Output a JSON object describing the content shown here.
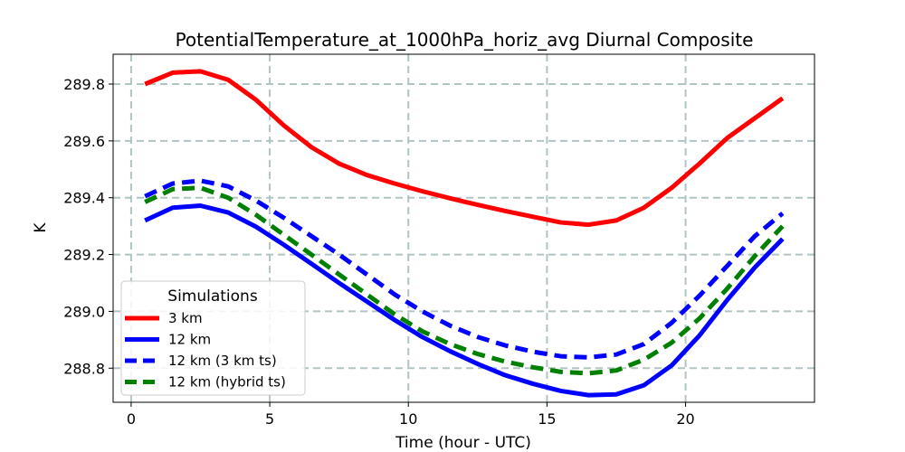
{
  "chart_data": {
    "type": "line",
    "title": "PotentialTemperature_at_1000hPa_horiz_avg Diurnal Composite",
    "xlabel": "Time (hour - UTC)",
    "ylabel": "K",
    "xlim": [
      -0.65,
      24.65
    ],
    "ylim": [
      288.68,
      289.905
    ],
    "xticks": [
      0,
      5,
      10,
      15,
      20
    ],
    "xtick_labels": [
      "0",
      "5",
      "10",
      "15",
      "20"
    ],
    "yticks": [
      288.8,
      289.0,
      289.2,
      289.4,
      289.6,
      289.8
    ],
    "ytick_labels": [
      "288.8",
      "289.0",
      "289.2",
      "289.4",
      "289.6",
      "289.8"
    ],
    "grid": true,
    "legend": {
      "title": "Simulations",
      "position": "lower-left"
    },
    "x": [
      0.5,
      1.5,
      2.5,
      3.5,
      4.5,
      5.5,
      6.5,
      7.5,
      8.5,
      9.5,
      10.5,
      11.5,
      12.5,
      13.5,
      14.5,
      15.5,
      16.5,
      17.5,
      18.5,
      19.5,
      20.5,
      21.5,
      22.5,
      23.5
    ],
    "series": [
      {
        "name": "3 km",
        "color": "#ff0000",
        "dash": "solid",
        "values": [
          289.8,
          289.84,
          289.845,
          289.815,
          289.745,
          289.655,
          289.578,
          289.52,
          289.48,
          289.45,
          289.423,
          289.398,
          289.375,
          289.353,
          289.333,
          289.313,
          289.305,
          289.32,
          289.365,
          289.435,
          289.52,
          289.61,
          289.68,
          289.75
        ]
      },
      {
        "name": "12 km",
        "color": "#0000ff",
        "dash": "solid",
        "values": [
          289.32,
          289.365,
          289.372,
          289.348,
          289.298,
          289.235,
          289.168,
          289.1,
          289.035,
          288.97,
          288.91,
          288.86,
          288.815,
          288.775,
          288.745,
          288.72,
          288.705,
          288.708,
          288.74,
          288.81,
          288.915,
          289.04,
          289.155,
          289.255
        ]
      },
      {
        "name": "12 km (3 km ts)",
        "color": "#0000ff",
        "dash": "dashed",
        "values": [
          289.405,
          289.45,
          289.46,
          289.44,
          289.39,
          289.33,
          289.265,
          289.2,
          289.13,
          289.06,
          289.0,
          288.95,
          288.91,
          288.88,
          288.858,
          288.842,
          288.838,
          288.848,
          288.885,
          288.96,
          289.055,
          289.16,
          289.265,
          289.345
        ]
      },
      {
        "name": "12 km (hybrid ts)",
        "color": "#008000",
        "dash": "dashed",
        "values": [
          289.385,
          289.43,
          289.435,
          289.4,
          289.34,
          289.27,
          289.2,
          289.13,
          289.06,
          288.99,
          288.93,
          288.885,
          288.85,
          288.823,
          288.803,
          288.787,
          288.782,
          288.792,
          288.83,
          288.89,
          288.975,
          289.08,
          289.195,
          289.3
        ]
      }
    ]
  }
}
